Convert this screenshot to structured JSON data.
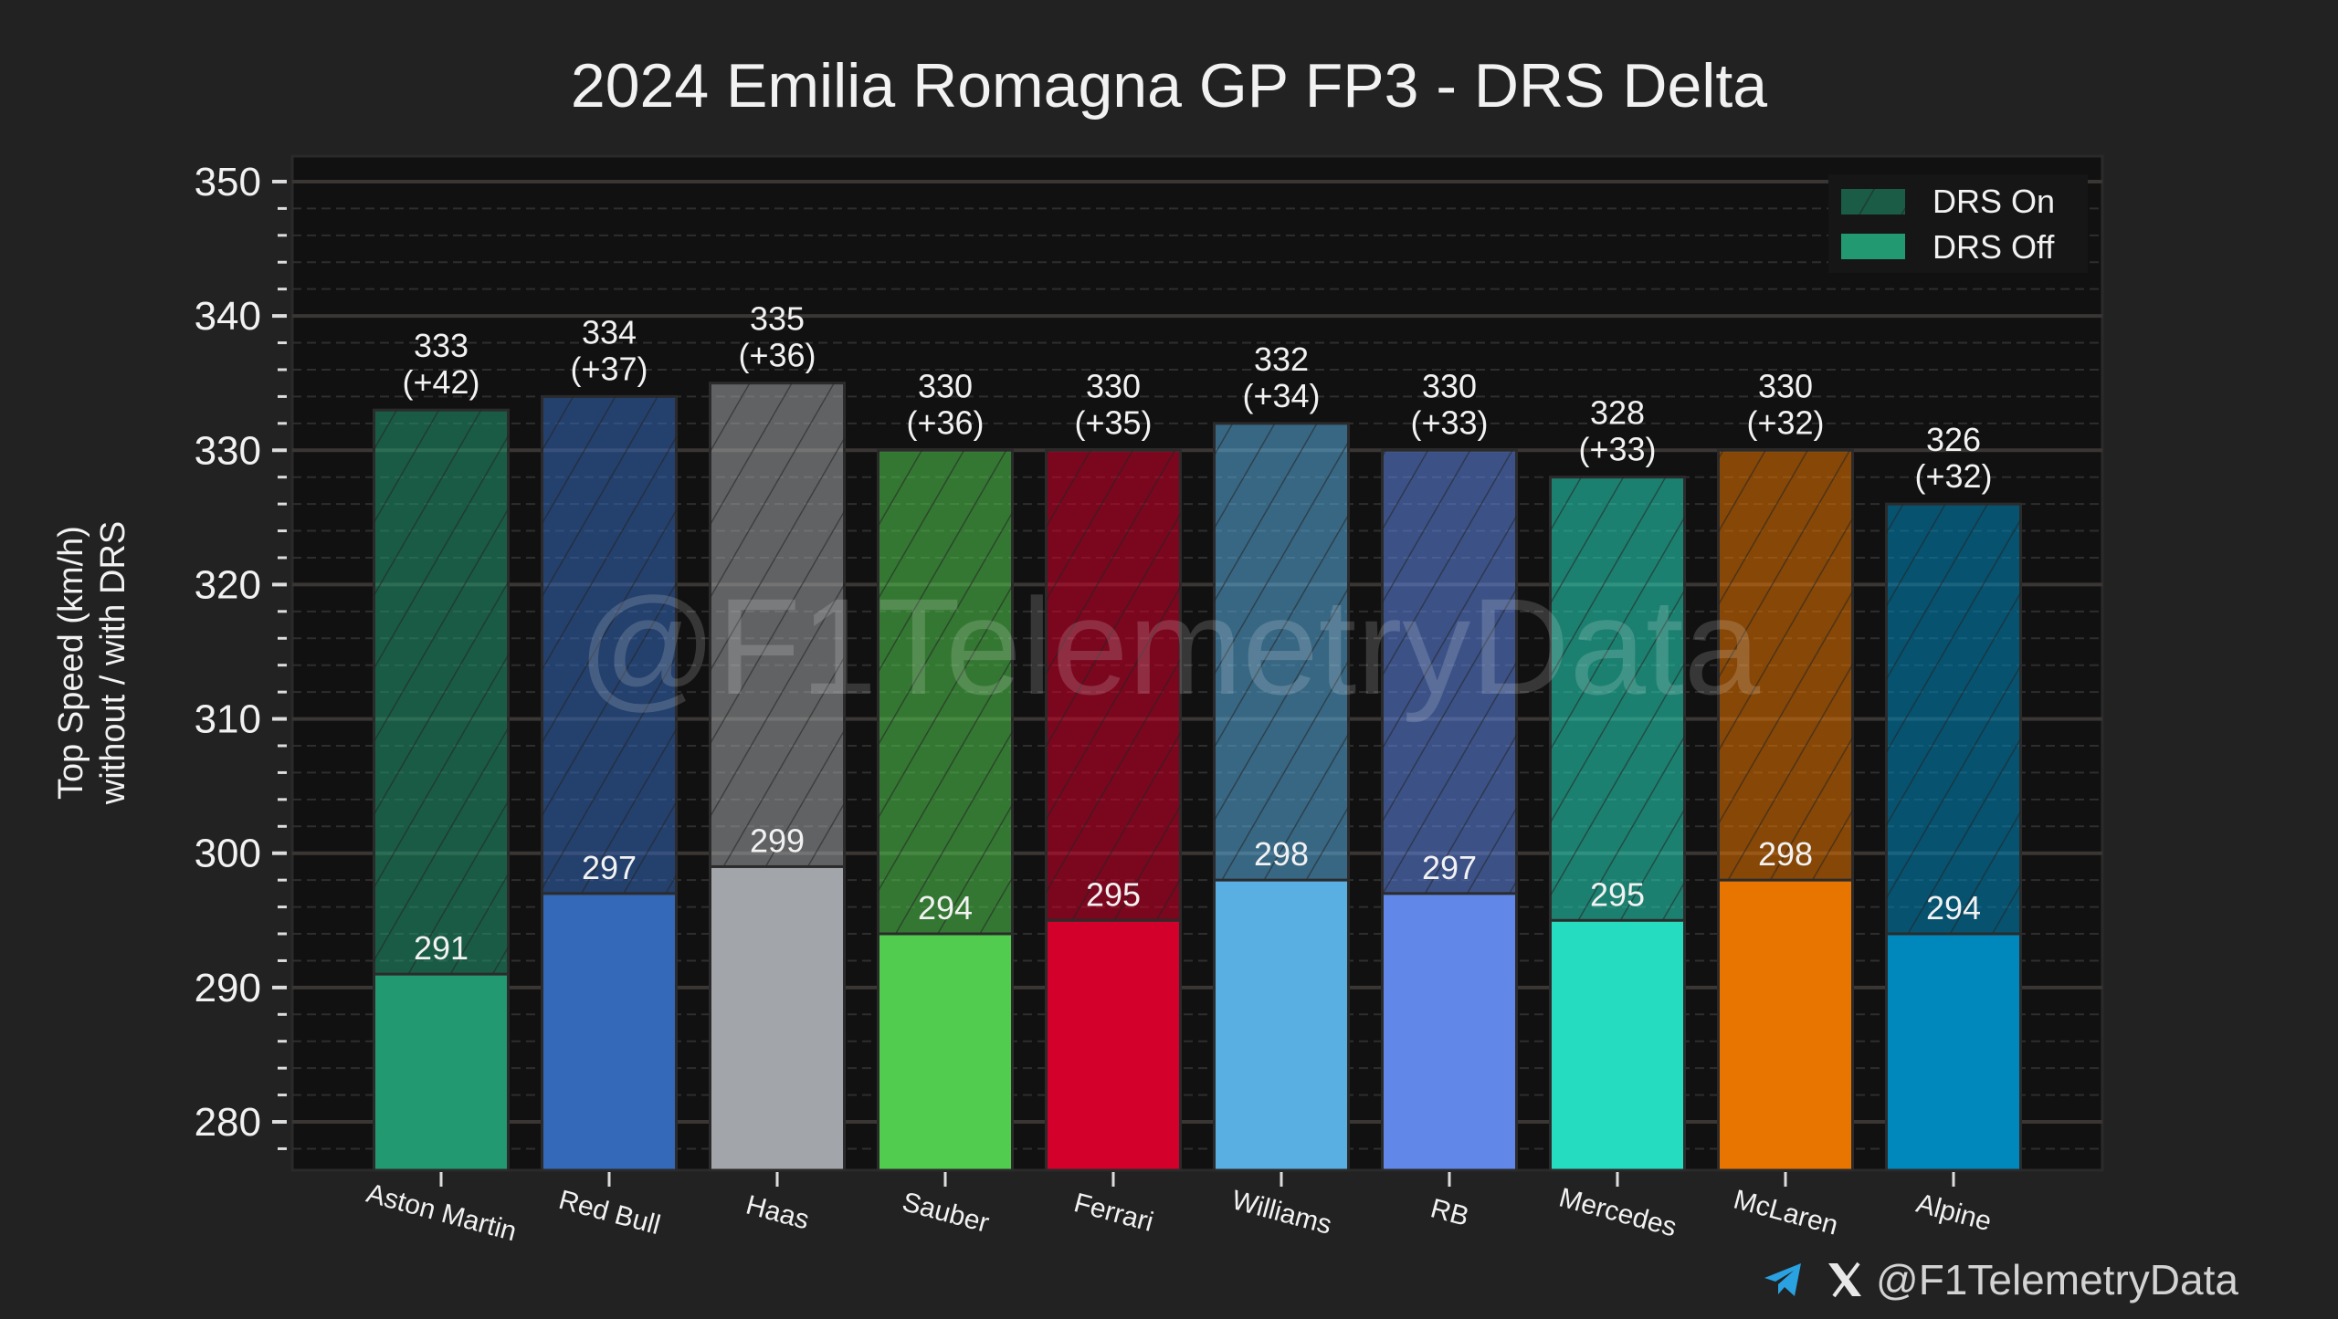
{
  "chart_data": {
    "type": "bar",
    "title": "2024 Emilia Romagna GP FP3 - DRS Delta",
    "ylabel_line1": "Top Speed (km/h)",
    "ylabel_line2": "without / with DRS",
    "xlabel": "",
    "ylim": [
      276.4,
      351.9
    ],
    "yticks": [
      280,
      290,
      300,
      310,
      320,
      330,
      340,
      350
    ],
    "grid": true,
    "legend": {
      "placement": "top-right",
      "entries": [
        "DRS On",
        "DRS Off"
      ]
    },
    "categories": [
      "Aston Martin",
      "Red Bull",
      "Haas",
      "Sauber",
      "Ferrari",
      "Williams",
      "RB",
      "Mercedes",
      "McLaren",
      "Alpine"
    ],
    "series": [
      {
        "name": "DRS Off",
        "values": [
          291,
          297,
          299,
          294,
          295,
          298,
          297,
          295,
          298,
          294
        ]
      },
      {
        "name": "DRS On",
        "values": [
          333,
          334,
          335,
          330,
          330,
          332,
          330,
          328,
          330,
          326
        ]
      }
    ],
    "deltas": [
      "(+42)",
      "(+37)",
      "(+36)",
      "(+36)",
      "(+35)",
      "(+34)",
      "(+33)",
      "(+33)",
      "(+32)",
      "(+32)"
    ],
    "colors": [
      "#229971",
      "#3468b8",
      "#a2a6aa",
      "#52cc4e",
      "#d2002a",
      "#5aafe2",
      "#6187e8",
      "#26dcc0",
      "#e87500",
      "#0088bd"
    ],
    "watermark": "@F1TelemetryData"
  },
  "footer": {
    "handle": "@F1TelemetryData",
    "icons": [
      "telegram-icon",
      "x-icon"
    ]
  }
}
